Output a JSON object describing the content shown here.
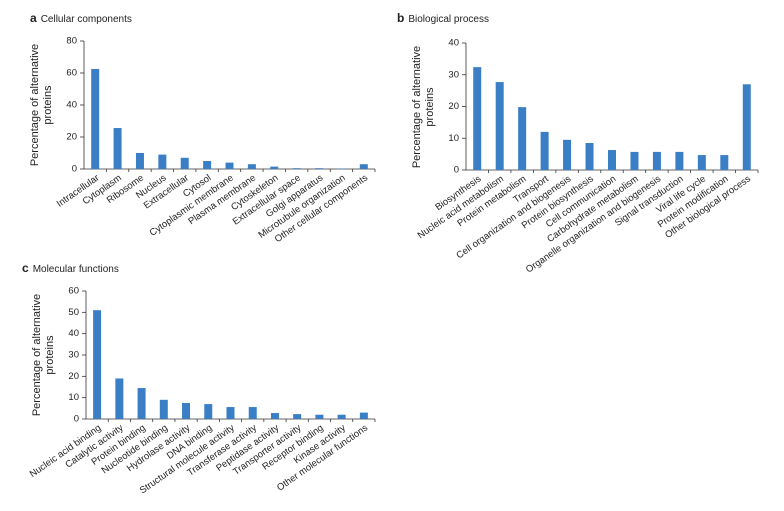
{
  "chart_data": [
    {
      "type": "bar",
      "panel": "a",
      "title": "Cellular components",
      "y_label": "Percentage of alternative proteins",
      "color": "#3a7fc6",
      "categories": [
        "Intracellular",
        "Cytoplasm",
        "Ribosome",
        "Nucleus",
        "Extracellular",
        "Cytosol",
        "Cytoplasmic membrane",
        "Plasma membrane",
        "Cytoskeleton",
        "Extracellular space",
        "Golgi apparatus",
        "Microtubule organization",
        "Other cellular components"
      ],
      "values": [
        62.5,
        25.6,
        10,
        9,
        7,
        5,
        4,
        3,
        1.5,
        0.5,
        0.5,
        0.3,
        3
      ],
      "ylim": [
        0,
        80
      ],
      "yticks": [
        0,
        20,
        40,
        60,
        80
      ]
    },
    {
      "type": "bar",
      "panel": "b",
      "title": "Biological process",
      "y_label": "Percentage of alternative proteins",
      "color": "#3a7fc6",
      "categories": [
        "Biosynthesis",
        "Nucleic acid metabolism",
        "Protein metabolism",
        "Transport",
        "Cell organization and biogenesis",
        "Protein biosynthesis",
        "Cell communication",
        "Carbohydrate metabolism",
        "Organelle organization and biogenesis",
        "Signal transduction",
        "Viral life cycle",
        "Protein modification",
        "Other biological process"
      ],
      "values": [
        32.4,
        27.7,
        19.8,
        12,
        9.5,
        8.5,
        6.3,
        5.7,
        5.7,
        5.7,
        4.7,
        4.7,
        27
      ],
      "ylim": [
        0,
        40
      ],
      "yticks": [
        0,
        10,
        20,
        30,
        40
      ]
    },
    {
      "type": "bar",
      "panel": "c",
      "title": "Molecular functions",
      "y_label": "Percentage of alternative proteins",
      "color": "#3a7fc6",
      "categories": [
        "Nucleic acid binding",
        "Catalytic activity",
        "Protein binding",
        "Nucleotide binding",
        "Hydrolase activity",
        "DNA binding",
        "Structural molecule activity",
        "Transferase activity",
        "Peptidase activity",
        "Transporter activity",
        "Receptor binding",
        "Kinase activity",
        "Other molecular functions"
      ],
      "values": [
        51,
        19,
        14.5,
        9,
        7.5,
        7,
        5.6,
        5.6,
        2.8,
        2.3,
        2,
        2,
        3
      ],
      "ylim": [
        0,
        60
      ],
      "yticks": [
        0,
        10,
        20,
        30,
        40,
        50,
        60
      ]
    }
  ]
}
